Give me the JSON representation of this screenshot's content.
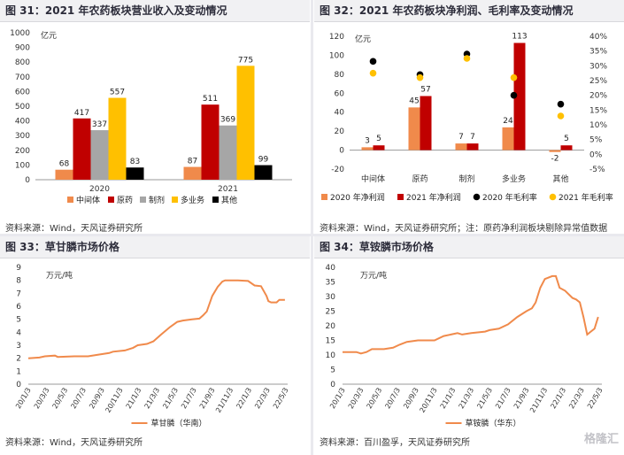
{
  "panels": [
    {
      "title": "图 31：2021 年农药板块营业收入及变动情况",
      "source": "资料来源：Wind，天风证券研究所"
    },
    {
      "title": "图 32：2021 年农药板块净利润、毛利率及变动情况",
      "source": "资料来源：Wind，天风证券研究所；注：原药净利润板块剔除异常值数据"
    },
    {
      "title": "图 33：草甘膦市场价格",
      "source": "资料来源：Wind，天风证券研究所"
    },
    {
      "title": "图 34：草铵膦市场价格",
      "source": "资料来源：百川盈孚，天风证券研究所"
    }
  ],
  "watermark": "格隆汇",
  "chart_data": [
    {
      "type": "bar",
      "ylabel": "亿元",
      "ylim": [
        0,
        1000
      ],
      "yticks": [
        0,
        100,
        200,
        300,
        400,
        500,
        600,
        700,
        800,
        900,
        1000
      ],
      "categories": [
        "2020",
        "2021"
      ],
      "series": [
        {
          "name": "中间体",
          "color": "#f08a4b",
          "values": [
            68,
            87
          ]
        },
        {
          "name": "原药",
          "color": "#c00000",
          "values": [
            417,
            511
          ]
        },
        {
          "name": "制剂",
          "color": "#a6a6a6",
          "values": [
            337,
            369
          ]
        },
        {
          "name": "多业务",
          "color": "#ffc000",
          "values": [
            557,
            775
          ]
        },
        {
          "name": "其他",
          "color": "#000000",
          "values": [
            83,
            99
          ]
        }
      ],
      "legend": "bottom",
      "grid": false
    },
    {
      "type": "bar",
      "ylabel": "亿元",
      "ylim": [
        -20,
        120
      ],
      "yticks": [
        -20,
        0,
        20,
        40,
        60,
        80,
        100,
        120
      ],
      "y2lim": [
        -5,
        40
      ],
      "y2ticks": [
        "-5%",
        "0%",
        "5%",
        "10%",
        "15%",
        "20%",
        "25%",
        "30%",
        "35%",
        "40%"
      ],
      "categories": [
        "中间体",
        "原药",
        "制剂",
        "多业务",
        "其他"
      ],
      "series": [
        {
          "name": "2020 年净利润",
          "kind": "bar",
          "color": "#f08a4b",
          "values": [
            3,
            45,
            7,
            24,
            -2
          ]
        },
        {
          "name": "2021 年净利润",
          "kind": "bar",
          "color": "#c00000",
          "values": [
            5,
            57,
            7,
            113,
            5
          ]
        },
        {
          "name": "2020 年毛利率",
          "kind": "dot",
          "axis": "right",
          "color": "#000000",
          "values": [
            31.5,
            27,
            34,
            20,
            17
          ]
        },
        {
          "name": "2021 年毛利率",
          "kind": "dot",
          "axis": "right",
          "color": "#ffc000",
          "values": [
            27.5,
            26,
            32.5,
            26,
            13
          ]
        }
      ],
      "legend": "bottom",
      "grid": false
    },
    {
      "type": "line",
      "ylabel": "万元/吨",
      "ylim": [
        0,
        9
      ],
      "yticks": [
        0,
        1,
        2,
        3,
        4,
        5,
        6,
        7,
        8,
        9
      ],
      "xticks": [
        "20/1/3",
        "20/3/3",
        "20/5/3",
        "20/7/3",
        "20/9/3",
        "20/11/3",
        "21/1/3",
        "21/3/3",
        "21/5/3",
        "21/7/3",
        "21/9/3",
        "21/11/3",
        "22/1/3",
        "22/3/3",
        "22/5/3"
      ],
      "xrange": [
        0,
        28.2
      ],
      "series": [
        {
          "name": "草甘膦（华南）",
          "color": "#f08a4b",
          "x": [
            0,
            1.2,
            1.8,
            2.9,
            3.2,
            5.0,
            6.5,
            7.4,
            8.8,
            9.2,
            10.5,
            11.4,
            11.9,
            12.9,
            13.6,
            14.4,
            15.4,
            16.2,
            16.8,
            17.8,
            18.6,
            19.0,
            19.4,
            20.0,
            20.6,
            21.1,
            21.4,
            22.8,
            23.9,
            24.6,
            25.3,
            25.9,
            26.1,
            26.4,
            27.0,
            27.3,
            27.9
          ],
          "y": [
            2.0,
            2.05,
            2.15,
            2.2,
            2.1,
            2.15,
            2.15,
            2.25,
            2.4,
            2.5,
            2.6,
            2.8,
            3.0,
            3.1,
            3.3,
            3.8,
            4.4,
            4.8,
            4.9,
            5.0,
            5.05,
            5.3,
            5.6,
            6.8,
            7.5,
            7.9,
            8.0,
            8.0,
            7.95,
            7.6,
            7.55,
            6.8,
            6.4,
            6.3,
            6.3,
            6.5,
            6.5
          ]
        }
      ],
      "legend": "bottom",
      "grid": false
    },
    {
      "type": "line",
      "ylabel": "万元/吨",
      "ylim": [
        0,
        40
      ],
      "yticks": [
        0,
        5,
        10,
        15,
        20,
        25,
        30,
        35,
        40
      ],
      "xticks": [
        "20/1/3",
        "20/3/3",
        "20/5/3",
        "20/7/3",
        "20/9/3",
        "20/11/3",
        "21/1/3",
        "21/3/3",
        "21/5/3",
        "21/7/3",
        "21/9/3",
        "21/11/3",
        "22/1/3",
        "22/3/3",
        "22/5/3"
      ],
      "xrange": [
        0,
        28.2
      ],
      "series": [
        {
          "name": "草铵膦（华东）",
          "color": "#f08a4b",
          "x": [
            0,
            1.5,
            2.0,
            2.6,
            3.2,
            4.5,
            5.5,
            6.2,
            7.0,
            8.2,
            10.0,
            11.0,
            12.5,
            13.0,
            14.0,
            15.5,
            16.0,
            17.0,
            18.0,
            19.0,
            20.0,
            20.6,
            21.0,
            21.5,
            22.0,
            22.8,
            23.2,
            23.6,
            24.2,
            25.0,
            25.4,
            25.8,
            26.2,
            26.6,
            27.0,
            27.4,
            27.8
          ],
          "y": [
            11,
            11,
            10.5,
            11,
            12,
            12,
            12.5,
            13.5,
            14.5,
            15,
            15,
            16.5,
            17.5,
            17,
            17.5,
            18,
            18.5,
            19,
            20.5,
            23,
            25,
            26,
            28,
            33,
            36,
            37,
            37,
            33,
            32,
            29.5,
            29,
            28,
            23,
            17,
            18,
            19,
            23
          ]
        }
      ],
      "legend": "bottom",
      "grid": false
    }
  ]
}
